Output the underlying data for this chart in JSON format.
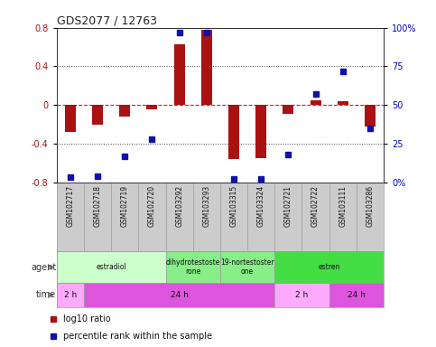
{
  "title": "GDS2077 / 12763",
  "samples": [
    "GSM102717",
    "GSM102718",
    "GSM102719",
    "GSM102720",
    "GSM103292",
    "GSM103293",
    "GSM103315",
    "GSM103324",
    "GSM102721",
    "GSM102722",
    "GSM103111",
    "GSM103286"
  ],
  "log10_ratio": [
    -0.28,
    -0.2,
    -0.12,
    -0.05,
    0.63,
    0.78,
    -0.56,
    -0.55,
    -0.09,
    0.05,
    0.04,
    -0.22
  ],
  "percentile_rank": [
    3,
    4,
    17,
    28,
    97,
    97,
    2,
    2,
    18,
    57,
    72,
    35
  ],
  "ylim_left": [
    -0.8,
    0.8
  ],
  "ylim_right": [
    0,
    100
  ],
  "yticks_left": [
    -0.8,
    -0.4,
    0.0,
    0.4,
    0.8
  ],
  "yticks_right": [
    0,
    25,
    50,
    75,
    100
  ],
  "ytick_labels_right": [
    "0",
    "25",
    "50",
    "75",
    "100%"
  ],
  "ytick_labels_left": [
    "-0.8",
    "-0.4",
    "0",
    "0.4",
    "0.8"
  ],
  "bar_color": "#aa1111",
  "dot_color": "#1111aa",
  "hline_color": "#cc2222",
  "dotted_color": "#444444",
  "agent_groups": [
    {
      "label": "estradiol",
      "start": 0,
      "end": 4,
      "color": "#ccffcc"
    },
    {
      "label": "dihydrotestoste\nrone",
      "start": 4,
      "end": 6,
      "color": "#88ee88"
    },
    {
      "label": "19-nortestoster\none",
      "start": 6,
      "end": 8,
      "color": "#88ee88"
    },
    {
      "label": "estren",
      "start": 8,
      "end": 12,
      "color": "#44dd44"
    }
  ],
  "time_groups": [
    {
      "label": "2 h",
      "start": 0,
      "end": 1,
      "color": "#ffaaff"
    },
    {
      "label": "24 h",
      "start": 1,
      "end": 8,
      "color": "#dd55dd"
    },
    {
      "label": "2 h",
      "start": 8,
      "end": 10,
      "color": "#ffaaff"
    },
    {
      "label": "24 h",
      "start": 10,
      "end": 12,
      "color": "#dd55dd"
    }
  ],
  "legend_items": [
    {
      "color": "#aa1111",
      "label": "log10 ratio"
    },
    {
      "color": "#1111aa",
      "label": "percentile rank within the sample"
    }
  ],
  "bg_color": "#ffffff",
  "sample_bg_color": "#cccccc",
  "sample_border_color": "#999999"
}
